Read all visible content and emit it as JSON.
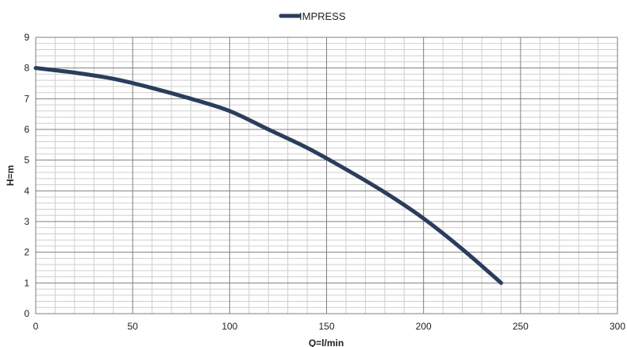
{
  "chart_data": {
    "type": "line",
    "xlabel": "Q=l/min",
    "ylabel": "H=m",
    "xlim": [
      0,
      300
    ],
    "ylim": [
      0,
      9
    ],
    "x_ticks": [
      "0",
      "50",
      "100",
      "150",
      "200",
      "250",
      "300"
    ],
    "y_ticks": [
      "0",
      "1",
      "2",
      "3",
      "4",
      "5",
      "6",
      "7",
      "8",
      "9"
    ],
    "grid": true,
    "legend_position": "top-center",
    "series": [
      {
        "name": "IMPRESS",
        "color": "#2b3d5c",
        "x": [
          0,
          20,
          40,
          60,
          80,
          100,
          120,
          140,
          160,
          180,
          200,
          220,
          240
        ],
        "y": [
          8.0,
          7.85,
          7.65,
          7.35,
          7.0,
          6.6,
          6.0,
          5.4,
          4.7,
          3.95,
          3.1,
          2.1,
          1.0
        ]
      }
    ]
  }
}
